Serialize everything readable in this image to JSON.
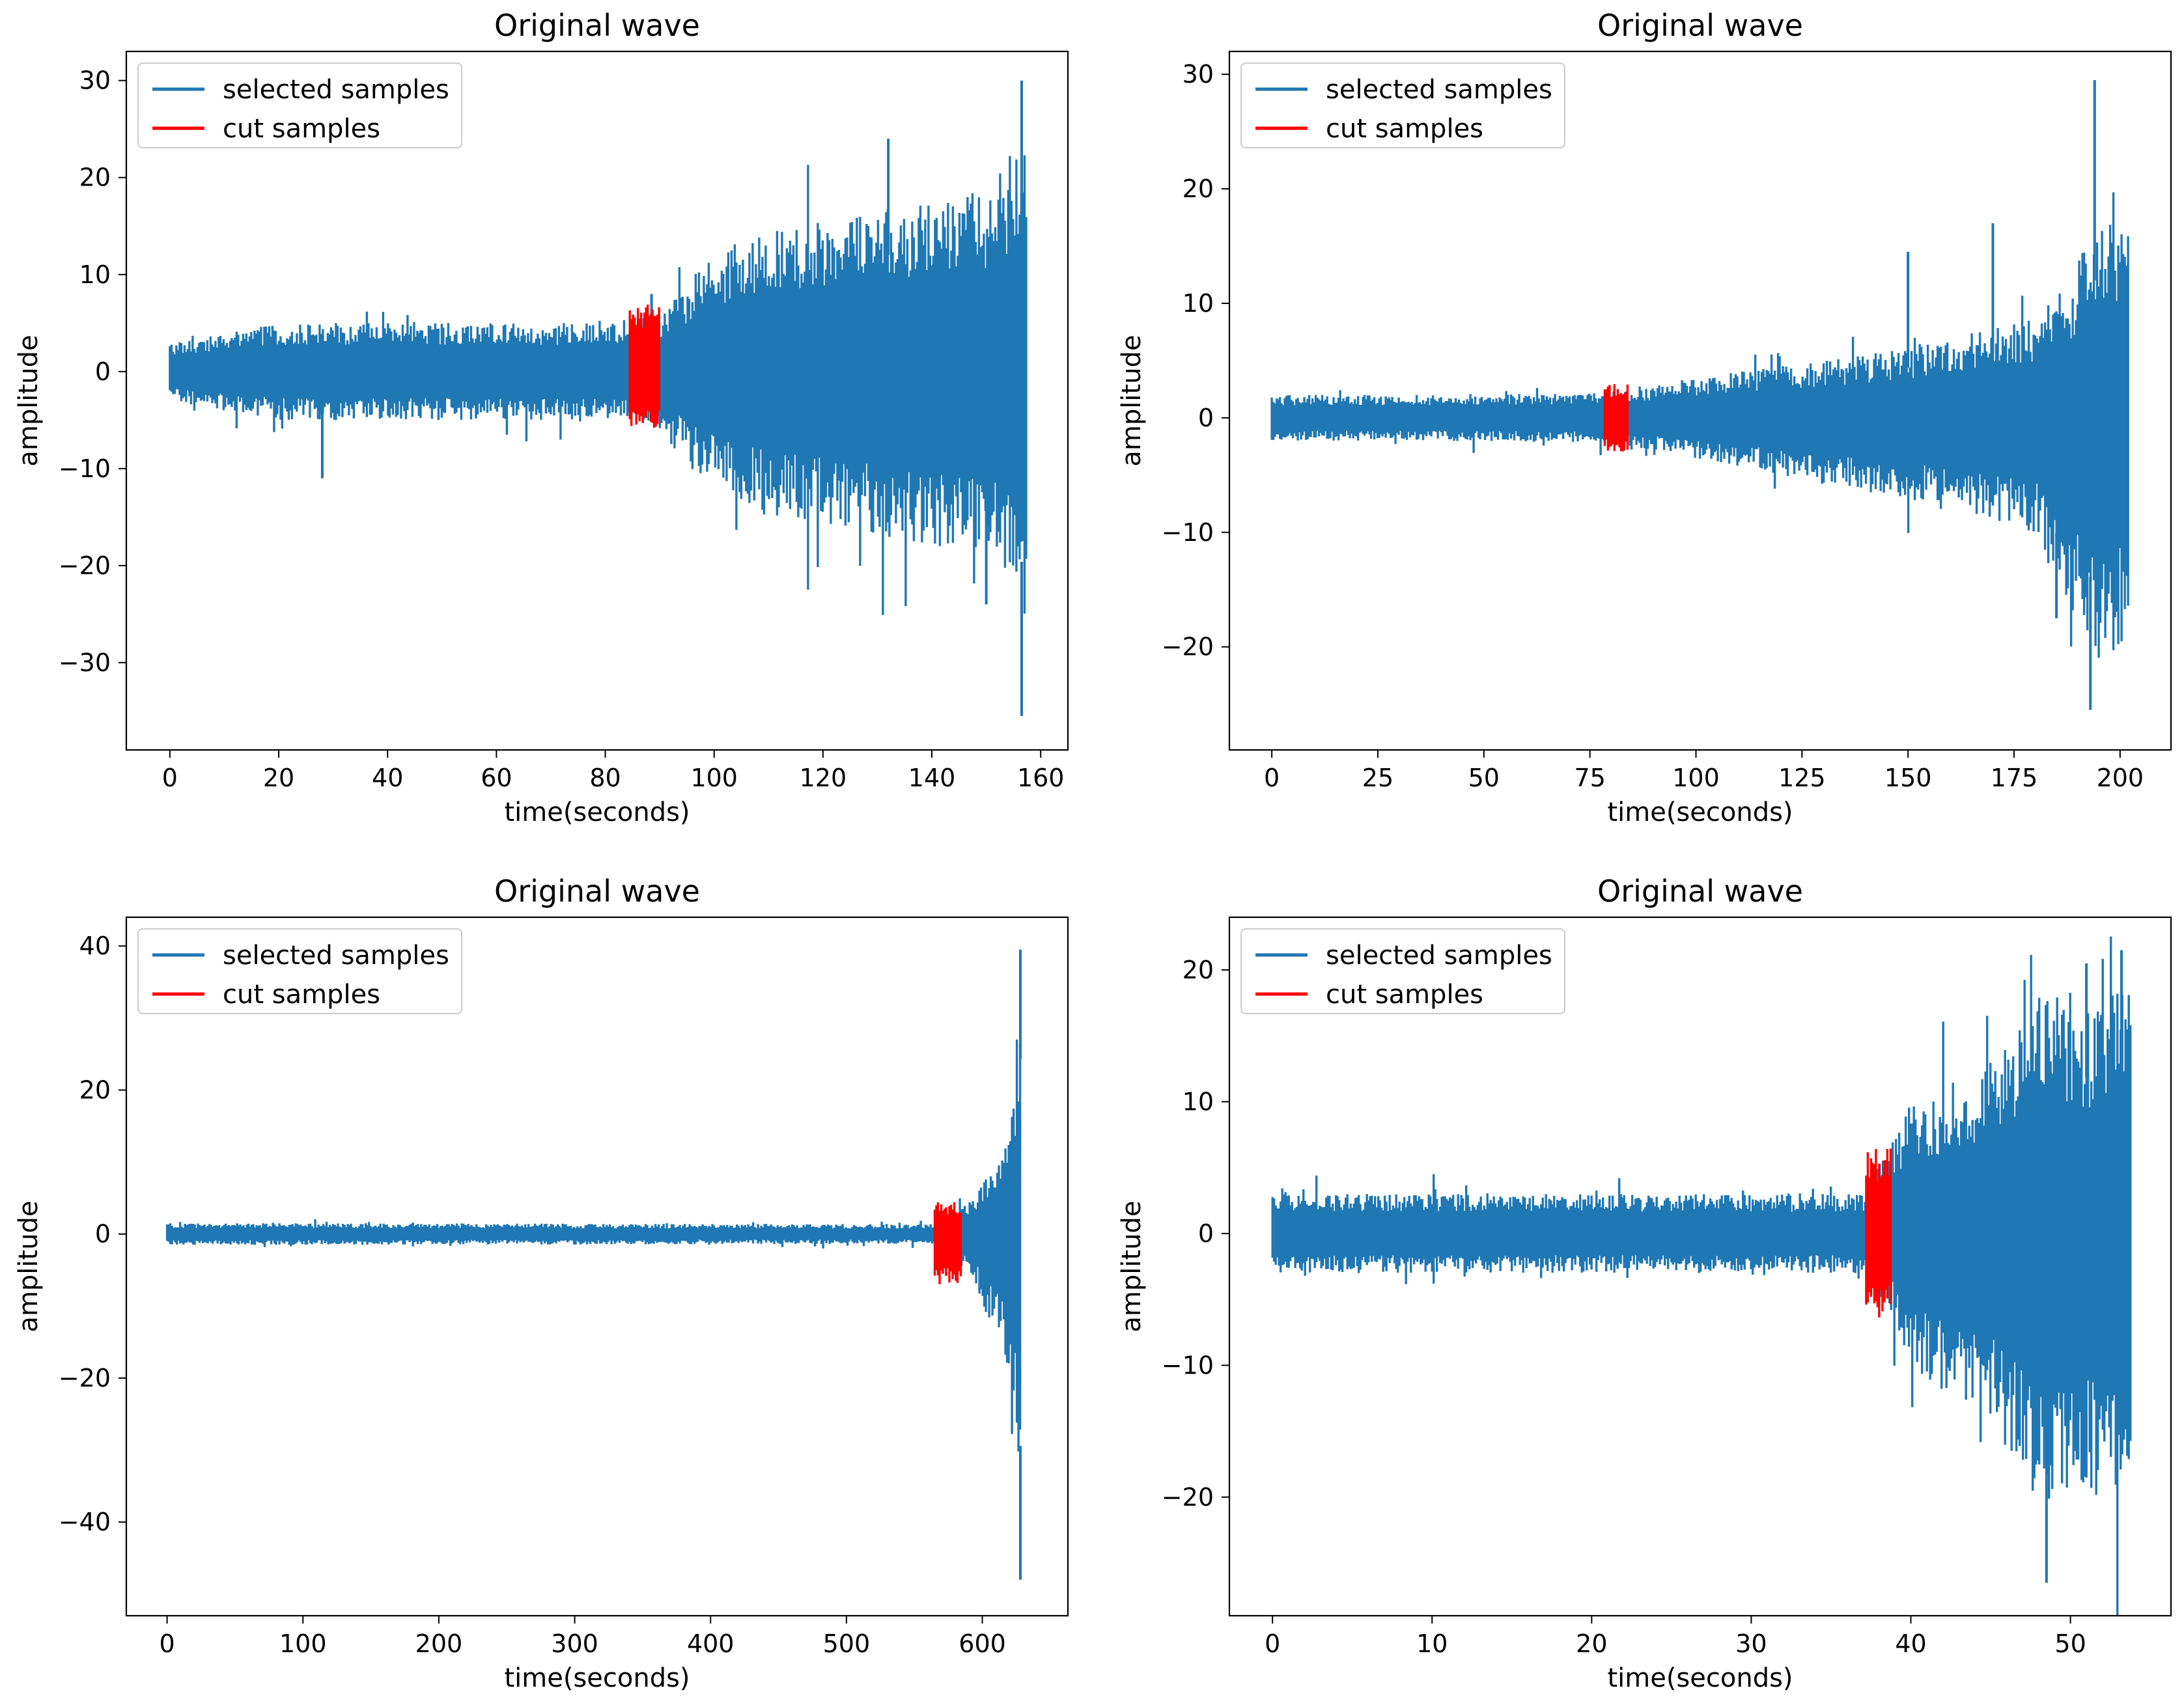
{
  "figure": {
    "background": "#ffffff",
    "selected_color": "#1f77b4",
    "cut_color": "#ff0000"
  },
  "chart_data": [
    {
      "type": "line",
      "title": "Original wave",
      "xlabel": "time(seconds)",
      "ylabel": "amplitude",
      "xlim": [
        -8,
        165
      ],
      "ylim": [
        -39,
        33
      ],
      "xticks": [
        0,
        20,
        40,
        60,
        80,
        100,
        120,
        140,
        160
      ],
      "xtick_labels": [
        "0",
        "20",
        "40",
        "60",
        "80",
        "100",
        "120",
        "140",
        "160"
      ],
      "yticks": [
        -30,
        -20,
        -10,
        0,
        10,
        20,
        30
      ],
      "ytick_labels": [
        "−30",
        "−20",
        "−10",
        "0",
        "10",
        "20",
        "30"
      ],
      "legend": {
        "position": "top-left",
        "entries": [
          "selected samples",
          "cut samples"
        ]
      },
      "series": [
        {
          "name": "selected samples",
          "x_range": [
            0,
            157.5
          ],
          "envelope_x": [
            0,
            20,
            40,
            60,
            84.5,
            90,
            95,
            100,
            110,
            120,
            130,
            140,
            150,
            155,
            157.5
          ],
          "envelope_upper": [
            3,
            5,
            5,
            5,
            5,
            6,
            9,
            12,
            15,
            16,
            17,
            18,
            19,
            22,
            29
          ],
          "envelope_lower": [
            -3,
            -5,
            -5,
            -5,
            -5,
            -6,
            -9,
            -12,
            -15,
            -16,
            -17,
            -18,
            -19,
            -22,
            -32
          ]
        },
        {
          "name": "cut samples",
          "x_range": [
            84.5,
            90
          ],
          "upper": 7,
          "lower": -6
        }
      ],
      "peaks": [
        {
          "x": 28,
          "y": -11
        },
        {
          "x": 88.5,
          "y": 8
        },
        {
          "x": 132,
          "y": 24
        },
        {
          "x": 156.5,
          "y": 30
        },
        {
          "x": 156.5,
          "y": -35.5
        },
        {
          "x": 150,
          "y": -24
        }
      ]
    },
    {
      "type": "line",
      "title": "Original wave",
      "xlabel": "time(seconds)",
      "ylabel": "amplitude",
      "xlim": [
        -10,
        212
      ],
      "ylim": [
        -29,
        32
      ],
      "xticks": [
        0,
        25,
        50,
        75,
        100,
        125,
        150,
        175,
        200
      ],
      "xtick_labels": [
        "0",
        "25",
        "50",
        "75",
        "100",
        "125",
        "150",
        "175",
        "200"
      ],
      "yticks": [
        -20,
        -10,
        0,
        10,
        20,
        30
      ],
      "ytick_labels": [
        "−20",
        "−10",
        "0",
        "10",
        "20",
        "30"
      ],
      "legend": {
        "position": "top-left",
        "entries": [
          "selected samples",
          "cut samples"
        ]
      },
      "series": [
        {
          "name": "selected samples",
          "x_range": [
            0,
            202
          ],
          "envelope_x": [
            0,
            40,
            77.5,
            85,
            100,
            120,
            140,
            160,
            180,
            188,
            195,
            202
          ],
          "envelope_upper": [
            2,
            2,
            2.2,
            2.5,
            3.5,
            4.5,
            5.5,
            7,
            9,
            12,
            18,
            16
          ],
          "envelope_lower": [
            -2,
            -2,
            -2.2,
            -2.5,
            -3.5,
            -5,
            -6.5,
            -8,
            -10,
            -17,
            -21,
            -20
          ]
        },
        {
          "name": "cut samples",
          "x_range": [
            78.5,
            84
          ],
          "upper": 3,
          "lower": -3
        }
      ],
      "peaks": [
        {
          "x": 194,
          "y": 29.5
        },
        {
          "x": 193,
          "y": -25.5
        },
        {
          "x": 185,
          "y": -17.5
        },
        {
          "x": 170,
          "y": 17
        },
        {
          "x": 150,
          "y": 14.5
        }
      ]
    },
    {
      "type": "line",
      "title": "Original wave",
      "xlabel": "time(seconds)",
      "ylabel": "amplitude",
      "xlim": [
        -30,
        663
      ],
      "ylim": [
        -53,
        44
      ],
      "xticks": [
        0,
        100,
        200,
        300,
        400,
        500,
        600
      ],
      "xtick_labels": [
        "0",
        "100",
        "200",
        "300",
        "400",
        "500",
        "600"
      ],
      "yticks": [
        -40,
        -20,
        0,
        20,
        40
      ],
      "ytick_labels": [
        "−40",
        "−20",
        "0",
        "20",
        "40"
      ],
      "legend": {
        "position": "top-left",
        "entries": [
          "selected samples",
          "cut samples"
        ]
      },
      "series": [
        {
          "name": "selected samples",
          "x_range": [
            0,
            629
          ],
          "envelope_x": [
            0,
            200,
            400,
            565,
            585,
            595,
            605,
            615,
            620,
            625,
            629
          ],
          "envelope_upper": [
            1.5,
            1.5,
            1.4,
            1.4,
            3.5,
            6,
            9,
            13,
            17,
            25,
            38
          ],
          "envelope_lower": [
            -1.5,
            -1.5,
            -1.4,
            -1.4,
            -4.5,
            -7,
            -12,
            -16,
            -20,
            -30,
            -46
          ]
        },
        {
          "name": "cut samples",
          "x_range": [
            565,
            585
          ],
          "upper": 4.5,
          "lower": -7
        }
      ],
      "peaks": [
        {
          "x": 628,
          "y": 39.5
        },
        {
          "x": 628,
          "y": -48
        }
      ]
    },
    {
      "type": "line",
      "title": "Original wave",
      "xlabel": "time(seconds)",
      "ylabel": "amplitude",
      "xlim": [
        -2.7,
        56.3
      ],
      "ylim": [
        -29,
        24
      ],
      "xticks": [
        0,
        10,
        20,
        30,
        40,
        50
      ],
      "xtick_labels": [
        "0",
        "10",
        "20",
        "30",
        "40",
        "50"
      ],
      "yticks": [
        -20,
        -10,
        0,
        10,
        20
      ],
      "ytick_labels": [
        "−20",
        "−10",
        "0",
        "10",
        "20"
      ],
      "legend": {
        "position": "top-left",
        "entries": [
          "selected samples",
          "cut samples"
        ]
      },
      "series": [
        {
          "name": "selected samples",
          "x_range": [
            0,
            53.8
          ],
          "envelope_x": [
            0,
            10,
            20,
            30,
            37,
            38.8,
            40,
            42,
            45,
            47.5,
            49,
            51,
            53.8
          ],
          "envelope_upper": [
            3,
            3,
            3,
            3,
            3,
            7,
            10,
            11,
            13,
            18,
            18,
            17,
            19
          ],
          "envelope_lower": [
            -3,
            -3,
            -3,
            -3,
            -3,
            -6,
            -10,
            -12,
            -14,
            -20,
            -21,
            -20,
            -22
          ]
        },
        {
          "name": "cut samples",
          "x_range": [
            37.2,
            38.8
          ],
          "upper": 6.5,
          "lower": -6.5
        }
      ],
      "peaks": [
        {
          "x": 53.2,
          "y": 21.5
        },
        {
          "x": 48.5,
          "y": -26.5
        },
        {
          "x": 51,
          "y": 20.5
        }
      ]
    }
  ]
}
